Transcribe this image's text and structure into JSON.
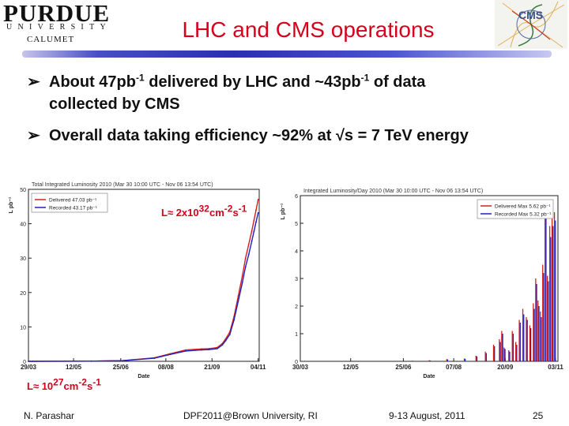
{
  "logos": {
    "left": {
      "name": "PURDUE",
      "university": "UNIVERSITY",
      "campus": "CALUMET"
    },
    "right": {
      "text": "CMS"
    }
  },
  "title": "LHC and CMS operations",
  "bullets": [
    {
      "pre": "About 47pb",
      "sup1": "-1",
      "mid": " delivered by LHC and ~43pb",
      "sup2": "-1",
      "post": " of data",
      "line2": "collected by CMS"
    },
    {
      "text": "Overall data taking efficiency ~92%  at √s = 7 TeV energy"
    }
  ],
  "annotations": {
    "high": {
      "base": "L≈ 2x10",
      "exp1": "32",
      "unit": "cm",
      "exp2": "-2",
      "s": "s",
      "exp3": "-1"
    },
    "low": {
      "base": "L≈ 10",
      "exp1": "27",
      "unit": "cm",
      "exp2": "-2",
      "s": "s",
      "exp3": "-1"
    }
  },
  "footer": {
    "author": "N. Parashar",
    "conference": "DPF2011@Brown University, RI",
    "dates": "9-13 August, 2011",
    "page": "25"
  },
  "colors": {
    "delivered": "#d62020",
    "recorded": "#2020c0",
    "title": "#d6001c"
  },
  "chart_data": [
    {
      "type": "line",
      "title": "Total Integrated Luminosity 2010 (Mar 30 10:00 UTC - Nov 06 13:54 UTC)",
      "xlabel": "Date",
      "ylabel": "L pb⁻¹",
      "xlim": [
        0,
        220
      ],
      "ylim": [
        0,
        50
      ],
      "x_ticks": [
        0,
        43,
        88,
        131,
        175,
        219
      ],
      "x_tick_labels": [
        "29/03",
        "12/05",
        "25/06",
        "08/08",
        "21/09",
        "04/11"
      ],
      "y_ticks": [
        0,
        10,
        20,
        30,
        40,
        50
      ],
      "y_tick_labels": [
        "0",
        "10",
        "20",
        "30",
        "40",
        "50"
      ],
      "legend": [
        "Delivered 47.03 pb⁻¹",
        "Recorded 43.17 pb⁻¹"
      ],
      "legend_position": "top-left",
      "series": [
        {
          "name": "Delivered",
          "x": [
            0,
            60,
            90,
            120,
            135,
            150,
            165,
            172,
            180,
            185,
            188,
            192,
            196,
            200,
            204,
            207,
            210,
            213,
            215,
            217,
            219
          ],
          "values": [
            0,
            0.05,
            0.2,
            1.0,
            2.2,
            3.3,
            3.6,
            3.7,
            4.0,
            5.2,
            6.5,
            8.5,
            13.0,
            19.0,
            25.0,
            30.0,
            34.0,
            38.0,
            41.0,
            44.0,
            47.03
          ]
        },
        {
          "name": "Recorded",
          "x": [
            0,
            60,
            90,
            120,
            135,
            150,
            165,
            172,
            180,
            185,
            188,
            192,
            196,
            200,
            204,
            207,
            210,
            213,
            215,
            217,
            219
          ],
          "values": [
            0,
            0.04,
            0.18,
            0.9,
            2.0,
            3.0,
            3.3,
            3.4,
            3.7,
            4.8,
            6.0,
            7.8,
            12.0,
            17.5,
            23.0,
            27.5,
            31.0,
            35.0,
            37.8,
            40.5,
            43.17
          ]
        }
      ]
    },
    {
      "type": "bar",
      "title": "Integrated Luminosity/Day 2010 (Mar 30 10:00 UTC - Nov 06 13:54 UTC)",
      "xlabel": "Date",
      "ylabel": "L pb⁻¹",
      "xlim": [
        0,
        220
      ],
      "ylim": [
        0,
        6
      ],
      "x_ticks": [
        0,
        43,
        88,
        131,
        175,
        218
      ],
      "x_tick_labels": [
        "30/03",
        "12/05",
        "25/06",
        "07/08",
        "20/09",
        "03/11"
      ],
      "y_ticks": [
        0,
        1,
        2,
        3,
        4,
        5,
        6
      ],
      "y_tick_labels": [
        "0",
        "1",
        "2",
        "3",
        "4",
        "5",
        "6"
      ],
      "legend": [
        "Delivered Max 5.62 pb⁻¹",
        "Recorded Max 5.32 pb⁻¹"
      ],
      "legend_position": "top-right",
      "series": [
        {
          "name": "Delivered",
          "x": [
            95,
            110,
            125,
            140,
            150,
            158,
            165,
            170,
            172,
            174,
            178,
            181,
            184,
            187,
            190,
            193,
            196,
            199,
            201,
            203,
            205,
            207,
            209,
            211,
            213,
            215,
            217
          ],
          "values": [
            0.02,
            0.04,
            0.08,
            0.1,
            0.2,
            0.35,
            0.6,
            0.8,
            1.1,
            0.5,
            0.4,
            1.1,
            0.7,
            1.5,
            1.9,
            1.6,
            1.3,
            2.1,
            3.0,
            2.2,
            1.8,
            3.5,
            5.62,
            3.1,
            4.9,
            5.2,
            5.4
          ]
        },
        {
          "name": "Recorded",
          "x": [
            95,
            110,
            125,
            140,
            150,
            158,
            165,
            170,
            172,
            174,
            178,
            181,
            184,
            187,
            190,
            193,
            196,
            199,
            201,
            203,
            205,
            207,
            209,
            211,
            213,
            215,
            217
          ],
          "values": [
            0.02,
            0.03,
            0.07,
            0.09,
            0.18,
            0.3,
            0.55,
            0.7,
            1.0,
            0.45,
            0.35,
            1.0,
            0.6,
            1.4,
            1.7,
            1.5,
            1.2,
            1.9,
            2.8,
            2.0,
            1.6,
            3.2,
            5.32,
            2.9,
            4.5,
            4.9,
            5.1
          ]
        }
      ]
    }
  ]
}
